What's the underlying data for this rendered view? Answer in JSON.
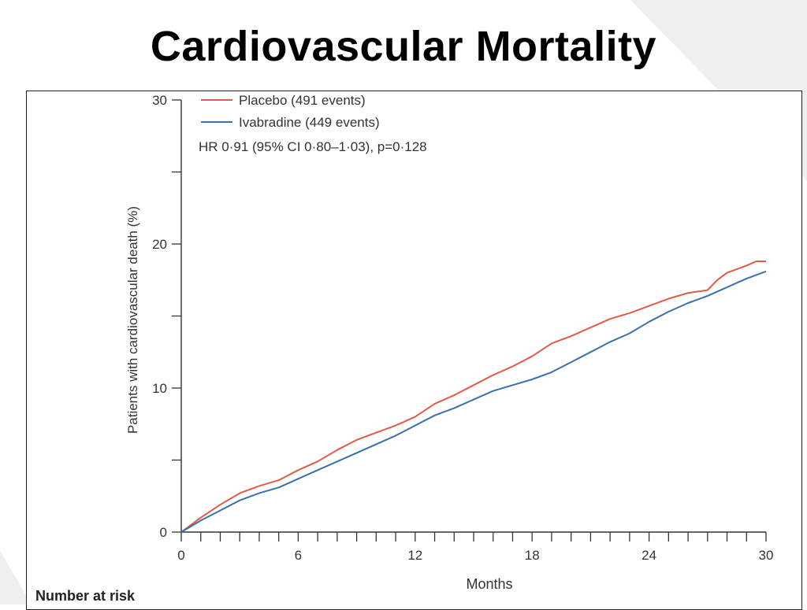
{
  "slide": {
    "title": "Cardiovascular Mortality"
  },
  "footer": {
    "risk_label": "Number at risk"
  },
  "chart_data": {
    "type": "line",
    "xlabel": "Months",
    "ylabel": "Patients with cardiovascular death (%)",
    "xlim": [
      0,
      30
    ],
    "ylim": [
      0,
      30
    ],
    "x_ticks": [
      0,
      6,
      12,
      18,
      24,
      30
    ],
    "y_ticks": [
      0,
      10,
      20,
      30
    ],
    "grid": false,
    "legend_position": "top-left",
    "annotation": "HR 0·91 (95% CI 0·80–1·03), p=0·128",
    "series": [
      {
        "name": "Placebo (491 events)",
        "color": "#e05a4a",
        "x": [
          0,
          1,
          2,
          3,
          4,
          5,
          6,
          7,
          8,
          9,
          10,
          11,
          12,
          13,
          14,
          15,
          16,
          17,
          18,
          19,
          20,
          21,
          22,
          23,
          24,
          25,
          26,
          27,
          27.5,
          28,
          29,
          29.5,
          30
        ],
        "y": [
          0,
          1.0,
          1.9,
          2.7,
          3.2,
          3.6,
          4.3,
          4.9,
          5.7,
          6.4,
          6.9,
          7.4,
          8.0,
          8.9,
          9.5,
          10.2,
          10.9,
          11.5,
          12.2,
          13.1,
          13.6,
          14.2,
          14.8,
          15.2,
          15.7,
          16.2,
          16.6,
          16.8,
          17.5,
          18.0,
          18.5,
          18.8,
          18.8
        ]
      },
      {
        "name": "Ivabradine (449 events)",
        "color": "#3a6fb0",
        "x": [
          0,
          1,
          2,
          3,
          4,
          5,
          6,
          7,
          8,
          9,
          10,
          11,
          12,
          13,
          14,
          15,
          16,
          17,
          18,
          19,
          20,
          21,
          22,
          23,
          24,
          25,
          26,
          27,
          28,
          29,
          30
        ],
        "y": [
          0,
          0.8,
          1.5,
          2.2,
          2.7,
          3.1,
          3.7,
          4.3,
          4.9,
          5.5,
          6.1,
          6.7,
          7.4,
          8.1,
          8.6,
          9.2,
          9.8,
          10.2,
          10.6,
          11.1,
          11.8,
          12.5,
          13.2,
          13.8,
          14.6,
          15.3,
          15.9,
          16.4,
          17.0,
          17.6,
          18.1
        ]
      }
    ]
  }
}
